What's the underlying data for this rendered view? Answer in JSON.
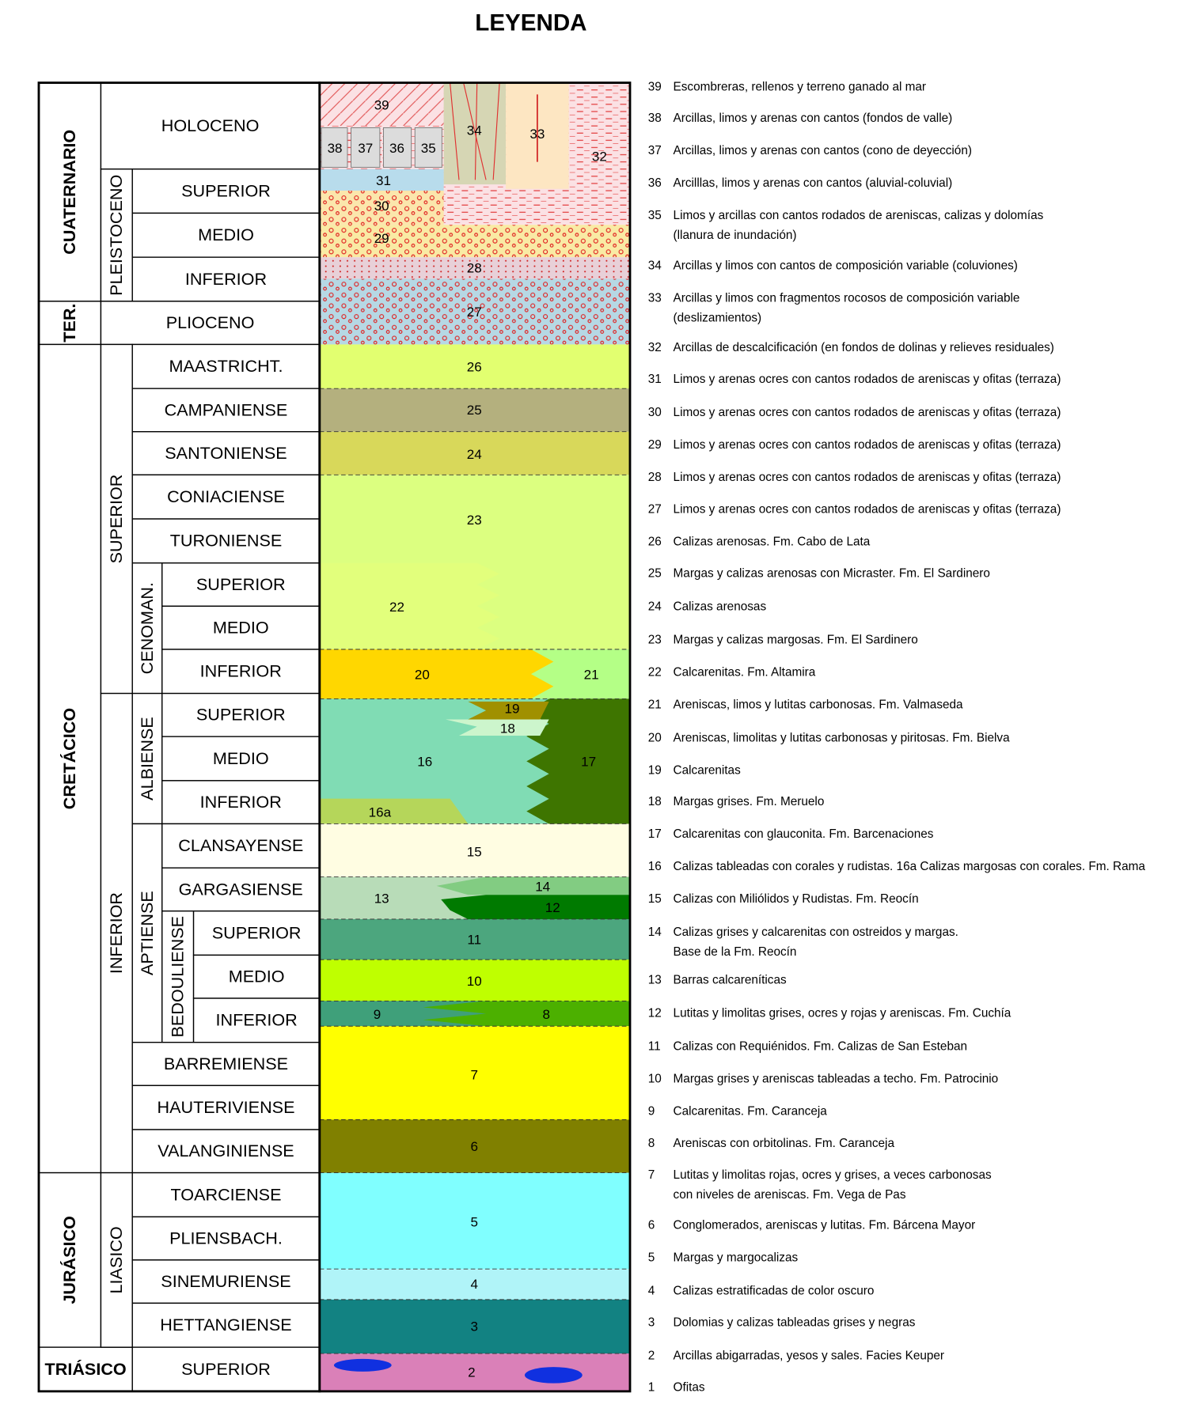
{
  "title": "LEYENDA",
  "cells": [
    "CUATERNARIO",
    "TER.",
    "CRETÁCICO",
    "JURÁSICO",
    "TRIÁSICO",
    "HOLOCENO",
    "PLEISTOCENO",
    "SUPERIOR",
    "MEDIO",
    "INFERIOR",
    "PLIOCENO",
    "SUPERIOR",
    "MAASTRICHT.",
    "CAMPANIENSE",
    "SANTONIENSE",
    "CONIACIENSE",
    "TURONIENSE",
    "CENOMAN.",
    "SUPERIOR",
    "MEDIO",
    "INFERIOR",
    "INFERIOR",
    "ALBIENSE",
    "SUPERIOR",
    "MEDIO",
    "INFERIOR",
    "APTIENSE",
    "CLANSAYENSE",
    "GARGASIENSE",
    "BEDOULIENSE",
    "SUPERIOR",
    "MEDIO",
    "INFERIOR",
    "BARREMIENSE",
    "HAUTERIVIENSE",
    "VALANGINIENSE",
    "LIASICO",
    "TOARCIENSE",
    "PLIENSBACH.",
    "SINEMURIENSE",
    "HETTANGIENSE",
    "SUPERIOR"
  ],
  "units": [
    "39",
    "38",
    "37",
    "36",
    "35",
    "34",
    "33",
    "32",
    "31",
    "30",
    "29",
    "28",
    "27",
    "26",
    "25",
    "24",
    "23",
    "22",
    "21",
    "20",
    "19",
    "18",
    "17",
    "16",
    "16a",
    "15",
    "14",
    "13",
    "12",
    "11",
    "10",
    "9",
    "8",
    "7",
    "6",
    "5",
    "4",
    "3",
    "2"
  ],
  "legend": [
    {
      "number": "39",
      "lines": [
        "Escombreras, rellenos y terreno ganado al mar"
      ]
    },
    {
      "number": "38",
      "lines": [
        "Arcillas, limos y arenas con cantos (fondos de valle)"
      ]
    },
    {
      "number": "37",
      "lines": [
        "Arcillas, limos y arenas con cantos (cono de deyección)"
      ]
    },
    {
      "number": "36",
      "lines": [
        "Arcilllas, limos y arenas con cantos (aluvial-coluvial)"
      ]
    },
    {
      "number": "35",
      "lines": [
        "Limos y arcillas con cantos rodados de areniscas, calizas y dolomías",
        "(llanura de inundación)"
      ]
    },
    {
      "number": "34",
      "lines": [
        "Arcillas y limos con cantos de composición variable (coluviones)"
      ]
    },
    {
      "number": "33",
      "lines": [
        "Arcillas y limos con fragmentos rocosos de composición variable",
        "(deslizamientos)"
      ]
    },
    {
      "number": "32",
      "lines": [
        "Arcillas de descalcificación (en fondos de dolinas y relieves residuales)"
      ]
    },
    {
      "number": "31",
      "lines": [
        "Limos y arenas ocres con cantos rodados de areniscas y ofitas (terraza)"
      ]
    },
    {
      "number": "30",
      "lines": [
        "Limos y arenas ocres con cantos rodados de areniscas y ofitas (terraza)"
      ]
    },
    {
      "number": "29",
      "lines": [
        "Limos y arenas ocres con cantos rodados de areniscas y ofitas (terraza)"
      ]
    },
    {
      "number": "28",
      "lines": [
        "Limos y arenas ocres con cantos rodados de areniscas y ofitas (terraza)"
      ]
    },
    {
      "number": "27",
      "lines": [
        "Limos y arenas ocres con cantos rodados de areniscas y ofitas (terraza)"
      ]
    },
    {
      "number": "26",
      "lines": [
        "Calizas arenosas. Fm. Cabo de Lata"
      ]
    },
    {
      "number": "25",
      "lines": [
        "Margas y calizas arenosas con Micraster. Fm. El Sardinero"
      ]
    },
    {
      "number": "24",
      "lines": [
        "Calizas arenosas"
      ]
    },
    {
      "number": "23",
      "lines": [
        "Margas y calizas margosas. Fm. El Sardinero"
      ]
    },
    {
      "number": "22",
      "lines": [
        "Calcarenitas. Fm. Altamira"
      ]
    },
    {
      "number": "21",
      "lines": [
        "Areniscas, limos y lutitas carbonosas. Fm. Valmaseda"
      ]
    },
    {
      "number": "20",
      "lines": [
        "Areniscas, limolitas y lutitas carbonosas y piritosas. Fm. Bielva"
      ]
    },
    {
      "number": "19",
      "lines": [
        "Calcarenitas"
      ]
    },
    {
      "number": "18",
      "lines": [
        "Margas grises. Fm. Meruelo"
      ]
    },
    {
      "number": "17",
      "lines": [
        "Calcarenitas con glauconita. Fm. Barcenaciones"
      ]
    },
    {
      "number": "16",
      "lines": [
        "Calizas tableadas con corales y rudistas. 16a Calizas margosas con corales. Fm. Rama"
      ]
    },
    {
      "number": "15",
      "lines": [
        "Calizas con Miliólidos y Rudistas. Fm. Reocín"
      ]
    },
    {
      "number": "14",
      "lines": [
        "Calizas grises y calcarenitas con ostreidos y margas.",
        "Base de la Fm. Reocín"
      ]
    },
    {
      "number": "13",
      "lines": [
        "Barras calcareníticas"
      ]
    },
    {
      "number": "12",
      "lines": [
        "Lutitas y limolitas grises, ocres y rojas y areniscas. Fm. Cuchía"
      ]
    },
    {
      "number": "11",
      "lines": [
        "Calizas con Requiénidos. Fm. Calizas de San Esteban"
      ]
    },
    {
      "number": "10",
      "lines": [
        "Margas grises y areniscas tableadas a techo. Fm. Patrocinio"
      ]
    },
    {
      "number": "9",
      "lines": [
        "Calcarenitas. Fm. Caranceja"
      ]
    },
    {
      "number": "8",
      "lines": [
        "Areniscas con orbitolinas. Fm. Caranceja"
      ]
    },
    {
      "number": "7",
      "lines": [
        "Lutitas y limolitas rojas, ocres y grises, a veces carbonosas",
        "con niveles de areniscas. Fm. Vega de Pas"
      ]
    },
    {
      "number": "6",
      "lines": [
        "Conglomerados, areniscas y lutitas. Fm. Bárcena Mayor"
      ]
    },
    {
      "number": "5",
      "lines": [
        "Margas y margocalizas"
      ]
    },
    {
      "number": "4",
      "lines": [
        "Calizas estratificadas de color oscuro"
      ]
    },
    {
      "number": "3",
      "lines": [
        "Dolomias y calizas tableadas grises y negras"
      ]
    },
    {
      "number": "2",
      "lines": [
        "Arcillas abigarradas, yesos y sales. Facies Keuper"
      ]
    },
    {
      "number": "1",
      "lines": [
        "Ofitas"
      ]
    }
  ]
}
